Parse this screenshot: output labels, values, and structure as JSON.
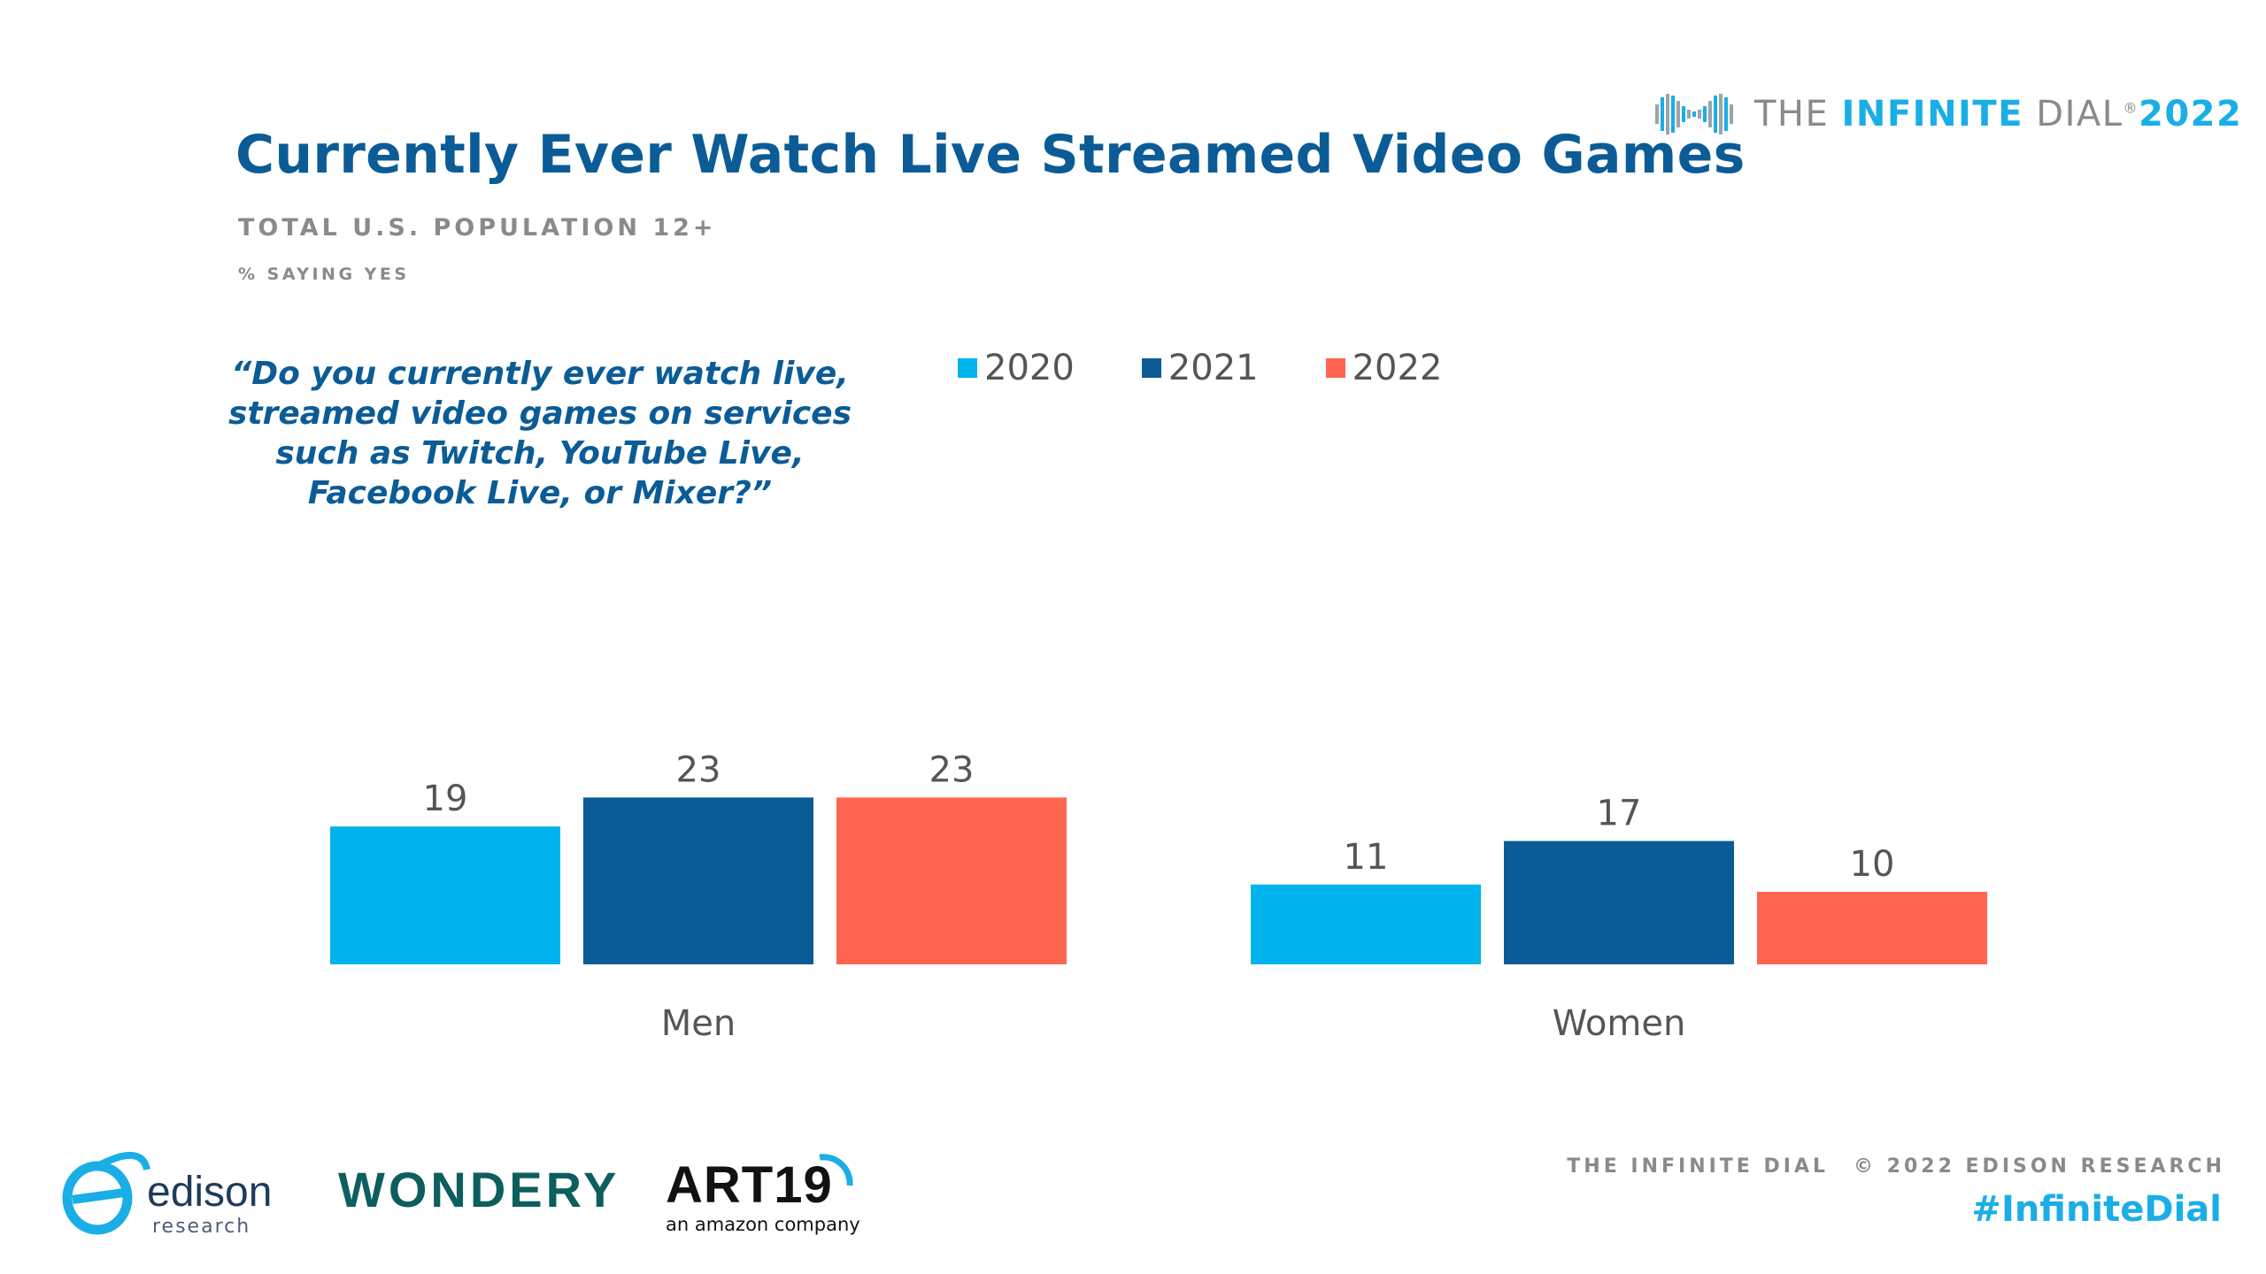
{
  "header": {
    "title": "Currently Ever Watch Live Streamed Video Games",
    "subtitle": "TOTAL U.S. POPULATION 12+",
    "note": "% SAYING YES"
  },
  "question": "“Do you currently ever watch live, streamed video games on services such as Twitch, YouTube Live, Facebook Live, or Mixer?”",
  "brand": {
    "prefix": "THE ",
    "accent": "INFINITE",
    "suffix": " DIAL",
    "registered": "®",
    "year": "2022"
  },
  "colors": {
    "c2020": "#00b3ec",
    "c2021": "#0b5c96",
    "c2022": "#ff6450",
    "title": "#0b5c96",
    "gray": "#8a8a8a"
  },
  "chart_data": {
    "type": "bar",
    "title": "Currently Ever Watch Live Streamed Video Games",
    "categories": [
      "Men",
      "Women"
    ],
    "series": [
      {
        "name": "2020",
        "values": [
          19,
          11
        ]
      },
      {
        "name": "2021",
        "values": [
          23,
          17
        ]
      },
      {
        "name": "2022",
        "values": [
          23,
          10
        ]
      }
    ],
    "xlabel": "",
    "ylabel": "% saying yes",
    "ylim": [
      0,
      100
    ],
    "grid": false,
    "legend": "top"
  },
  "footer": {
    "credit_left": "THE INFINITE DIAL",
    "credit_right": "© 2022 EDISON RESEARCH",
    "hashtag": "#InfiniteDial"
  },
  "partners": {
    "edison_name": "edison",
    "edison_sub": "research",
    "wondery": "WONDERY",
    "art19": "ART19",
    "art19_sub": "an amazon company"
  }
}
